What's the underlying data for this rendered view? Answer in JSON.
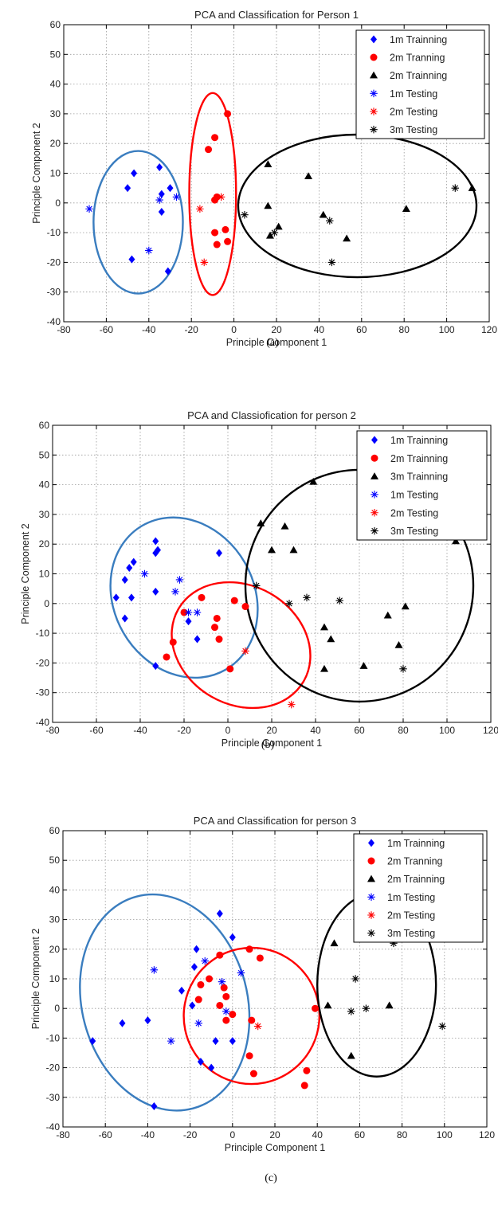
{
  "figure": {
    "captions": [
      "(a)",
      "(b)",
      "(c)"
    ]
  },
  "chart_data": [
    {
      "type": "scatter",
      "title": "PCA and Classification for Person 1",
      "xlabel": "Principle Component 1",
      "ylabel": "Principle Component 2",
      "xlim": [
        -80,
        120
      ],
      "ylim": [
        -40,
        60
      ],
      "xticks": [
        "-80",
        "-60",
        "-40",
        "-20",
        "0",
        "20",
        "40",
        "60",
        "80",
        "100",
        "120"
      ],
      "yticks": [
        "-40",
        "-30",
        "-20",
        "-10",
        "0",
        "10",
        "20",
        "30",
        "40",
        "50",
        "60"
      ],
      "grid": true,
      "legend_position": "top-right",
      "series": [
        {
          "name": "1m Trainning",
          "marker": "diamond",
          "color": "#0000ff",
          "points": [
            [
              -50,
              5
            ],
            [
              -47,
              10
            ],
            [
              -48,
              -19
            ],
            [
              -35,
              12
            ],
            [
              -34,
              3
            ],
            [
              -34,
              -3
            ],
            [
              -30,
              5
            ],
            [
              -31,
              -23
            ]
          ]
        },
        {
          "name": "2m Tranning",
          "marker": "circle",
          "color": "#ff0000",
          "points": [
            [
              -3,
              30
            ],
            [
              -9,
              22
            ],
            [
              -12,
              18
            ],
            [
              -9,
              1
            ],
            [
              -8,
              2
            ],
            [
              -9,
              -10
            ],
            [
              -4,
              -9
            ],
            [
              -8,
              -14
            ],
            [
              -3,
              -13
            ]
          ]
        },
        {
          "name": "2m Trainning",
          "marker": "triangle",
          "color": "#000000",
          "points": [
            [
              16,
              13
            ],
            [
              35,
              9
            ],
            [
              16,
              -1
            ],
            [
              21,
              -8
            ],
            [
              17,
              -11
            ],
            [
              42,
              -4
            ],
            [
              53,
              -12
            ],
            [
              81,
              -2
            ],
            [
              112,
              5
            ]
          ]
        },
        {
          "name": "1m Testing",
          "marker": "star",
          "color": "#0000ff",
          "points": [
            [
              -68,
              -2
            ],
            [
              -27,
              2
            ],
            [
              -35,
              1
            ],
            [
              -40,
              -16
            ]
          ]
        },
        {
          "name": "2m Testing",
          "marker": "star",
          "color": "#ff0000",
          "points": [
            [
              -16,
              -2
            ],
            [
              -6,
              2
            ],
            [
              -14,
              -20
            ]
          ]
        },
        {
          "name": "3m Testing",
          "marker": "star",
          "color": "#000000",
          "points": [
            [
              5,
              -4
            ],
            [
              19,
              -10
            ],
            [
              45,
              -6
            ],
            [
              46,
              -20
            ],
            [
              104,
              5
            ]
          ]
        }
      ],
      "ellipses": [
        {
          "color": "#3a7dbf",
          "cx": -45,
          "cy": -6.5,
          "rx": 21,
          "ry": 24
        },
        {
          "color": "#ff0000",
          "cx": -10,
          "cy": 3,
          "rx": 11,
          "ry": 34
        },
        {
          "color": "#000000",
          "cx": 58,
          "cy": -1,
          "rx": 56,
          "ry": 24
        }
      ]
    },
    {
      "type": "scatter",
      "title": "PCA and Classiofication for person 2",
      "xlabel": "Principle Component 1",
      "ylabel": "Principle Component 2",
      "xlim": [
        -80,
        120
      ],
      "ylim": [
        -40,
        60
      ],
      "xticks": [
        "-80",
        "-60",
        "-40",
        "-20",
        "0",
        "20",
        "40",
        "60",
        "80",
        "100",
        "120"
      ],
      "yticks": [
        "-40",
        "-30",
        "-20",
        "-10",
        "0",
        "10",
        "20",
        "30",
        "40",
        "50",
        "60"
      ],
      "grid": true,
      "legend_position": "top-right",
      "series": [
        {
          "name": "1m Trainning",
          "marker": "diamond",
          "color": "#0000ff",
          "points": [
            [
              -33,
              21
            ],
            [
              -33,
              17
            ],
            [
              -32,
              18
            ],
            [
              -43,
              14
            ],
            [
              -45,
              12
            ],
            [
              -47,
              8
            ],
            [
              -51,
              2
            ],
            [
              -44,
              2
            ],
            [
              -33,
              4
            ],
            [
              -47,
              -5
            ],
            [
              -18,
              -6
            ],
            [
              -14,
              -12
            ],
            [
              -33,
              -21
            ],
            [
              -4,
              17
            ]
          ]
        },
        {
          "name": "2m Trainning",
          "marker": "circle",
          "color": "#ff0000",
          "points": [
            [
              -12,
              2
            ],
            [
              -20,
              -3
            ],
            [
              -5,
              -5
            ],
            [
              3,
              1
            ],
            [
              8,
              -1
            ],
            [
              -6,
              -8
            ],
            [
              -25,
              -13
            ],
            [
              -4,
              -12
            ],
            [
              -28,
              -18
            ],
            [
              1,
              -22
            ]
          ]
        },
        {
          "name": "3m Trainning",
          "marker": "triangle",
          "color": "#000000",
          "points": [
            [
              39,
              41
            ],
            [
              15,
              27
            ],
            [
              26,
              26
            ],
            [
              20,
              18
            ],
            [
              30,
              18
            ],
            [
              104,
              21
            ],
            [
              44,
              -8
            ],
            [
              47,
              -12
            ],
            [
              73,
              -4
            ],
            [
              81,
              -1
            ],
            [
              78,
              -14
            ],
            [
              44,
              -22
            ],
            [
              62,
              -21
            ]
          ]
        },
        {
          "name": "1m Testing",
          "marker": "star",
          "color": "#0000ff",
          "points": [
            [
              -38,
              10
            ],
            [
              -24,
              4
            ],
            [
              -22,
              8
            ],
            [
              -18,
              -3
            ],
            [
              -14,
              -3
            ]
          ]
        },
        {
          "name": "2m Testing",
          "marker": "star",
          "color": "#ff0000",
          "points": [
            [
              8,
              -16
            ],
            [
              29,
              -34
            ]
          ]
        },
        {
          "name": "3m Testing",
          "marker": "star",
          "color": "#000000",
          "points": [
            [
              13,
              6
            ],
            [
              28,
              0
            ],
            [
              36,
              2
            ],
            [
              51,
              1
            ],
            [
              80,
              -22
            ]
          ]
        }
      ],
      "ellipses": [
        {
          "color": "#3a7dbf",
          "cx": -20,
          "cy": 2,
          "rx": 32,
          "ry": 28,
          "rotate": -30
        },
        {
          "color": "#ff0000",
          "cx": 6,
          "cy": -14,
          "rx": 33,
          "ry": 20,
          "rotate": 30
        },
        {
          "color": "#000000",
          "cx": 60,
          "cy": 6,
          "rx": 52,
          "ry": 39
        }
      ]
    },
    {
      "type": "scatter",
      "title": "PCA and Classification for person 3",
      "xlabel": "Principle Component 1",
      "ylabel": "Principle Component 2",
      "xlim": [
        -80,
        120
      ],
      "ylim": [
        -40,
        60
      ],
      "xticks": [
        "-80",
        "-60",
        "-40",
        "-20",
        "0",
        "20",
        "40",
        "60",
        "80",
        "100",
        "120"
      ],
      "yticks": [
        "-40",
        "-30",
        "-20",
        "-10",
        "0",
        "10",
        "20",
        "30",
        "40",
        "50",
        "60"
      ],
      "grid": true,
      "legend_position": "top-right",
      "series": [
        {
          "name": "1m Trainning",
          "marker": "diamond",
          "color": "#0000ff",
          "points": [
            [
              -6,
              32
            ],
            [
              0,
              24
            ],
            [
              -17,
              20
            ],
            [
              -18,
              14
            ],
            [
              -24,
              6
            ],
            [
              -19,
              1
            ],
            [
              -8,
              -11
            ],
            [
              0,
              -11
            ],
            [
              -10,
              -20
            ],
            [
              -15,
              -18
            ],
            [
              -40,
              -4
            ],
            [
              -52,
              -5
            ],
            [
              -66,
              -11
            ],
            [
              -37,
              -33
            ]
          ]
        },
        {
          "name": "2m Tranning",
          "marker": "circle",
          "color": "#ff0000",
          "points": [
            [
              8,
              20
            ],
            [
              13,
              17
            ],
            [
              -6,
              18
            ],
            [
              -15,
              8
            ],
            [
              -11,
              10
            ],
            [
              -4,
              7
            ],
            [
              -6,
              1
            ],
            [
              -3,
              4
            ],
            [
              -16,
              3
            ],
            [
              9,
              -4
            ],
            [
              0,
              -2
            ],
            [
              -3,
              -4
            ],
            [
              39,
              0
            ],
            [
              8,
              -16
            ],
            [
              10,
              -22
            ],
            [
              35,
              -21
            ],
            [
              34,
              -26
            ]
          ]
        },
        {
          "name": "2m Trainning",
          "marker": "triangle",
          "color": "#000000",
          "points": [
            [
              48,
              22
            ],
            [
              45,
              1
            ],
            [
              74,
              1
            ],
            [
              56,
              -16
            ]
          ]
        },
        {
          "name": "1m Testing",
          "marker": "star",
          "color": "#0000ff",
          "points": [
            [
              -37,
              13
            ],
            [
              -13,
              16
            ],
            [
              4,
              12
            ],
            [
              -5,
              9
            ],
            [
              -16,
              -5
            ],
            [
              -29,
              -11
            ],
            [
              -3,
              -1
            ]
          ]
        },
        {
          "name": "2m Testing",
          "marker": "star",
          "color": "#ff0000",
          "points": [
            [
              12,
              -6
            ]
          ]
        },
        {
          "name": "3m Testing",
          "marker": "star",
          "color": "#000000",
          "points": [
            [
              76,
              22
            ],
            [
              58,
              10
            ],
            [
              63,
              0
            ],
            [
              56,
              -1
            ],
            [
              99,
              -6
            ]
          ]
        }
      ],
      "ellipses": [
        {
          "color": "#3a7dbf",
          "cx": -32,
          "cy": 2,
          "rx": 39,
          "ry": 37,
          "rotate": -15
        },
        {
          "color": "#ff0000",
          "cx": 9,
          "cy": -2.5,
          "rx": 32,
          "ry": 23,
          "rotate": 10
        },
        {
          "color": "#000000",
          "cx": 68,
          "cy": 8,
          "rx": 28,
          "ry": 31
        }
      ]
    }
  ]
}
